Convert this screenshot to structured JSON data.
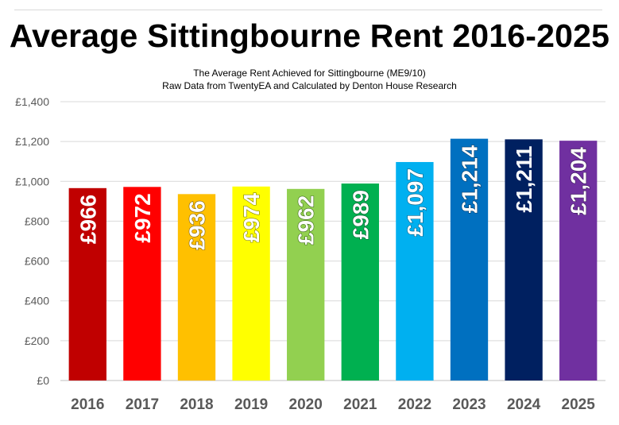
{
  "chart_data": {
    "type": "bar",
    "title": "Average Sittingbourne Rent 2016-2025",
    "subtitle": "The Average Rent Achieved for Sittingbourne (ME9/10)",
    "subtitle2": "Raw Data from TwentyEA and Calculated by Denton House Research",
    "categories": [
      "2016",
      "2017",
      "2018",
      "2019",
      "2020",
      "2021",
      "2022",
      "2023",
      "2024",
      "2025"
    ],
    "values": [
      966,
      972,
      936,
      974,
      962,
      989,
      1097,
      1214,
      1211,
      1204
    ],
    "data_labels": [
      "£966",
      "£972",
      "£936",
      "£974",
      "£962",
      "£989",
      "£1,097",
      "£1,214",
      "£1,211",
      "£1,204"
    ],
    "colors": [
      "#c00000",
      "#ff0000",
      "#ffc000",
      "#ffff00",
      "#92d050",
      "#00b050",
      "#00b0f0",
      "#0070c0",
      "#002060",
      "#7030a0"
    ],
    "label_outline": [
      "#c00000",
      "#ff0000",
      "#7f6000",
      "#7f7f00",
      "#3d6b16",
      "#005a2e",
      "#005f86",
      "#003a66",
      "#002060",
      "#3c1a5a"
    ],
    "ylim": [
      0,
      1400
    ],
    "yticks": [
      0,
      200,
      400,
      600,
      800,
      1000,
      1200,
      1400
    ],
    "ytick_labels": [
      "£0",
      "£200",
      "£400",
      "£600",
      "£800",
      "£1,000",
      "£1,200",
      "£1,400"
    ],
    "xlabel": "",
    "ylabel": "",
    "grid": true,
    "legend": "none"
  }
}
